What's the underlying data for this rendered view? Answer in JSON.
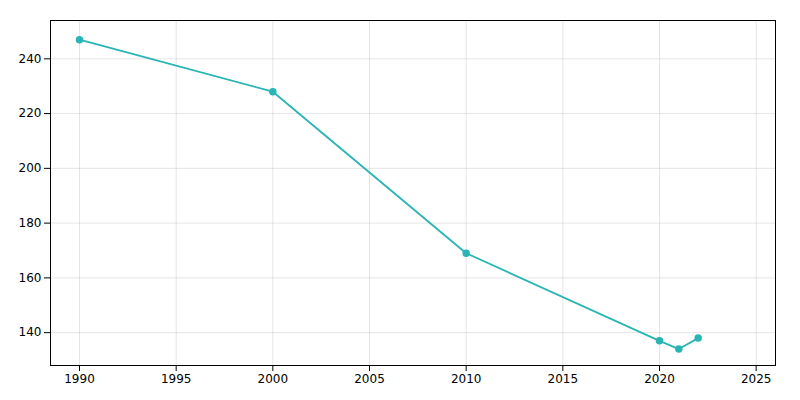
{
  "chart_data": {
    "type": "line",
    "x": [
      1990,
      2000,
      2010,
      2020,
      2021,
      2022
    ],
    "values": [
      247,
      228,
      169,
      137,
      134,
      138
    ],
    "color": "#2ab5b5",
    "marker": "circle",
    "xlim": [
      1988.5,
      2026
    ],
    "ylim": [
      128,
      254
    ],
    "xticks": [
      1990,
      1995,
      2000,
      2005,
      2010,
      2015,
      2020,
      2025
    ],
    "yticks": [
      140,
      160,
      180,
      200,
      220,
      240
    ],
    "grid": true
  }
}
